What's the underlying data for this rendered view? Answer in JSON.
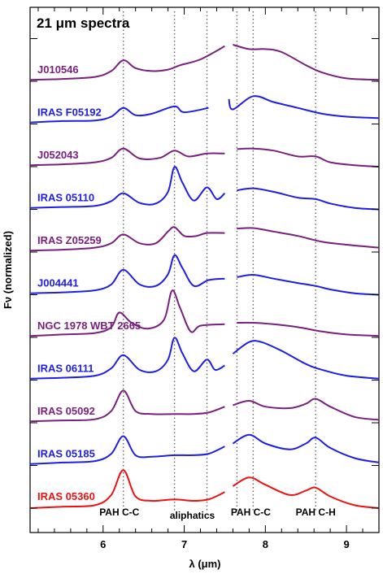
{
  "chart_data": {
    "type": "line",
    "title": "21 μm spectra",
    "xlabel": "λ (μm)",
    "ylabel": "Fν (normalized)",
    "xlim": [
      5.1,
      9.4
    ],
    "x_ticks": [
      "6",
      "7",
      "8",
      "9"
    ],
    "x_tick_values": [
      6,
      7,
      8,
      9
    ],
    "grid": false,
    "feature_lines": [
      {
        "label": "PAH C-C",
        "x": 6.25
      },
      {
        "label": "aliphatics",
        "x": 6.88
      },
      {
        "label": "aliphatics",
        "x": 7.28
      },
      {
        "label": "PAH C-C",
        "x": 7.65
      },
      {
        "label": "PAH C-C",
        "x": 7.85
      },
      {
        "label": "PAH C-H",
        "x": 8.62
      }
    ],
    "feature_labels": [
      {
        "label": "PAH C-C",
        "x": 6.2
      },
      {
        "label": "aliphatics",
        "x": 7.1
      },
      {
        "label": "PAH C-C",
        "x": 7.82
      },
      {
        "label": "PAH C-H",
        "x": 8.62
      }
    ],
    "series": [
      {
        "name": "J010546",
        "color": "#7a1f7e",
        "offset": 10,
        "x": [
          5.1,
          5.5,
          5.9,
          6.1,
          6.25,
          6.4,
          6.6,
          6.8,
          6.95,
          7.2,
          7.5,
          7.6,
          7.8,
          8.0,
          8.2,
          8.5,
          8.7,
          9.0,
          9.4
        ],
        "y": [
          0.05,
          0.08,
          0.15,
          0.35,
          0.72,
          0.45,
          0.35,
          0.4,
          0.55,
          0.75,
          1.2,
          1.25,
          1.1,
          1.1,
          1.0,
          0.55,
          0.3,
          0.1,
          0.05
        ]
      },
      {
        "name": "IRAS F05192",
        "color": "#1e1ee6",
        "offset": 9,
        "x": [
          5.1,
          5.5,
          5.9,
          6.1,
          6.25,
          6.4,
          6.6,
          6.88,
          7.0,
          7.3,
          7.55,
          7.6,
          7.85,
          8.1,
          8.4,
          8.7,
          9.0,
          9.4
        ],
        "y": [
          0.05,
          0.1,
          0.12,
          0.25,
          0.55,
          0.3,
          0.35,
          0.6,
          0.4,
          0.55,
          0.85,
          0.5,
          0.95,
          0.75,
          0.55,
          0.35,
          0.25,
          0.2
        ]
      },
      {
        "name": "J052043",
        "color": "#7a1f7e",
        "offset": 8,
        "x": [
          5.1,
          5.5,
          5.9,
          6.1,
          6.25,
          6.45,
          6.7,
          6.88,
          7.05,
          7.28,
          7.5,
          7.65,
          7.85,
          8.1,
          8.4,
          8.62,
          8.8,
          9.1,
          9.4
        ],
        "y": [
          0.05,
          0.08,
          0.15,
          0.3,
          0.62,
          0.28,
          0.3,
          0.55,
          0.35,
          0.45,
          0.45,
          0.6,
          0.62,
          0.55,
          0.35,
          0.35,
          0.15,
          0.05,
          0.0
        ]
      },
      {
        "name": "IRAS 05110",
        "color": "#1e1ee6",
        "offset": 7,
        "x": [
          5.1,
          5.5,
          5.9,
          6.1,
          6.25,
          6.45,
          6.65,
          6.8,
          6.88,
          6.98,
          7.12,
          7.28,
          7.4,
          7.5,
          7.65,
          7.85,
          8.1,
          8.4,
          8.62,
          8.8,
          9.1,
          9.4
        ],
        "y": [
          0.05,
          0.08,
          0.12,
          0.28,
          0.55,
          0.22,
          0.2,
          0.6,
          1.45,
          0.9,
          0.3,
          0.75,
          0.35,
          0.55,
          0.65,
          0.72,
          0.6,
          0.4,
          0.35,
          0.2,
          0.05,
          0.0
        ]
      },
      {
        "name": "IRAS Z05259",
        "color": "#7a1f7e",
        "offset": 6,
        "x": [
          5.1,
          5.5,
          5.9,
          6.1,
          6.25,
          6.45,
          6.65,
          6.8,
          6.88,
          7.0,
          7.15,
          7.28,
          7.5,
          7.65,
          7.85,
          8.1,
          8.4,
          8.7,
          9.0,
          9.4
        ],
        "y": [
          0.05,
          0.08,
          0.15,
          0.3,
          0.6,
          0.3,
          0.3,
          0.7,
          0.85,
          0.55,
          0.55,
          0.65,
          0.65,
          0.8,
          0.82,
          0.7,
          0.55,
          0.35,
          0.25,
          0.15
        ]
      },
      {
        "name": "J004441",
        "color": "#1e1ee6",
        "offset": 5,
        "x": [
          5.1,
          5.5,
          5.9,
          6.1,
          6.25,
          6.45,
          6.65,
          6.8,
          6.88,
          6.98,
          7.12,
          7.3,
          7.5,
          7.65,
          7.85,
          8.1,
          8.4,
          8.62,
          8.8,
          9.1,
          9.4
        ],
        "y": [
          0.05,
          0.08,
          0.15,
          0.35,
          0.85,
          0.35,
          0.3,
          0.7,
          1.35,
          0.9,
          0.3,
          0.5,
          0.55,
          0.6,
          0.68,
          0.55,
          0.4,
          0.3,
          0.18,
          0.05,
          0.0
        ]
      },
      {
        "name": "NGC 1978 WBT 2665",
        "color": "#7a1f7e",
        "offset": 4,
        "x": [
          5.1,
          5.5,
          5.9,
          6.1,
          6.2,
          6.35,
          6.55,
          6.75,
          6.85,
          6.95,
          7.08,
          7.2,
          7.5,
          7.65,
          7.85,
          8.1,
          8.4,
          8.7,
          9.0,
          9.4
        ],
        "y": [
          0.05,
          0.1,
          0.15,
          0.35,
          0.85,
          0.5,
          0.3,
          0.6,
          1.6,
          1.0,
          0.2,
          0.4,
          0.45,
          0.5,
          0.5,
          0.45,
          0.35,
          0.2,
          0.1,
          0.05
        ]
      },
      {
        "name": "IRAS 06111",
        "color": "#1e1ee6",
        "offset": 3,
        "x": [
          5.1,
          5.5,
          5.9,
          6.1,
          6.25,
          6.45,
          6.65,
          6.8,
          6.88,
          6.98,
          7.12,
          7.28,
          7.38,
          7.5,
          7.6,
          7.8,
          7.95,
          8.2,
          8.5,
          8.7,
          9.0,
          9.4
        ],
        "y": [
          0.05,
          0.08,
          0.15,
          0.4,
          0.85,
          0.35,
          0.3,
          0.7,
          1.45,
          0.9,
          0.3,
          0.7,
          0.35,
          0.5,
          0.9,
          1.3,
          1.3,
          1.0,
          0.55,
          0.35,
          0.15,
          0.05
        ]
      },
      {
        "name": "IRAS 05092",
        "color": "#7a1f7e",
        "offset": 2,
        "x": [
          5.1,
          5.5,
          5.9,
          6.1,
          6.25,
          6.4,
          6.6,
          6.88,
          7.1,
          7.3,
          7.5,
          7.6,
          7.8,
          8.0,
          8.3,
          8.5,
          8.62,
          8.8,
          9.1,
          9.4
        ],
        "y": [
          0.05,
          0.08,
          0.12,
          0.4,
          1.1,
          0.4,
          0.3,
          0.3,
          0.3,
          0.35,
          0.55,
          0.6,
          0.75,
          0.55,
          0.5,
          0.65,
          0.82,
          0.55,
          0.2,
          0.1
        ]
      },
      {
        "name": "IRAS 05185",
        "color": "#1e1ee6",
        "offset": 1,
        "x": [
          5.1,
          5.5,
          5.9,
          6.1,
          6.25,
          6.4,
          6.6,
          6.88,
          7.1,
          7.3,
          7.5,
          7.6,
          7.8,
          8.0,
          8.3,
          8.5,
          8.62,
          8.8,
          9.1,
          9.4
        ],
        "y": [
          0.05,
          0.1,
          0.15,
          0.4,
          1.0,
          0.35,
          0.3,
          0.35,
          0.35,
          0.4,
          0.65,
          0.75,
          1.05,
          0.75,
          0.55,
          0.75,
          0.95,
          0.6,
          0.25,
          0.1
        ]
      },
      {
        "name": "IRAS 05360",
        "color": "#ee1111",
        "offset": 0,
        "x": [
          5.1,
          5.5,
          5.9,
          6.1,
          6.25,
          6.4,
          6.6,
          6.88,
          7.1,
          7.3,
          7.5,
          7.6,
          7.8,
          8.0,
          8.3,
          8.5,
          8.62,
          8.8,
          9.1,
          9.4
        ],
        "y": [
          0.0,
          0.05,
          0.1,
          0.45,
          1.3,
          0.4,
          0.25,
          0.3,
          0.25,
          0.3,
          0.55,
          0.75,
          1.05,
          0.8,
          0.45,
          0.6,
          0.7,
          0.4,
          0.1,
          0.0
        ]
      }
    ]
  }
}
